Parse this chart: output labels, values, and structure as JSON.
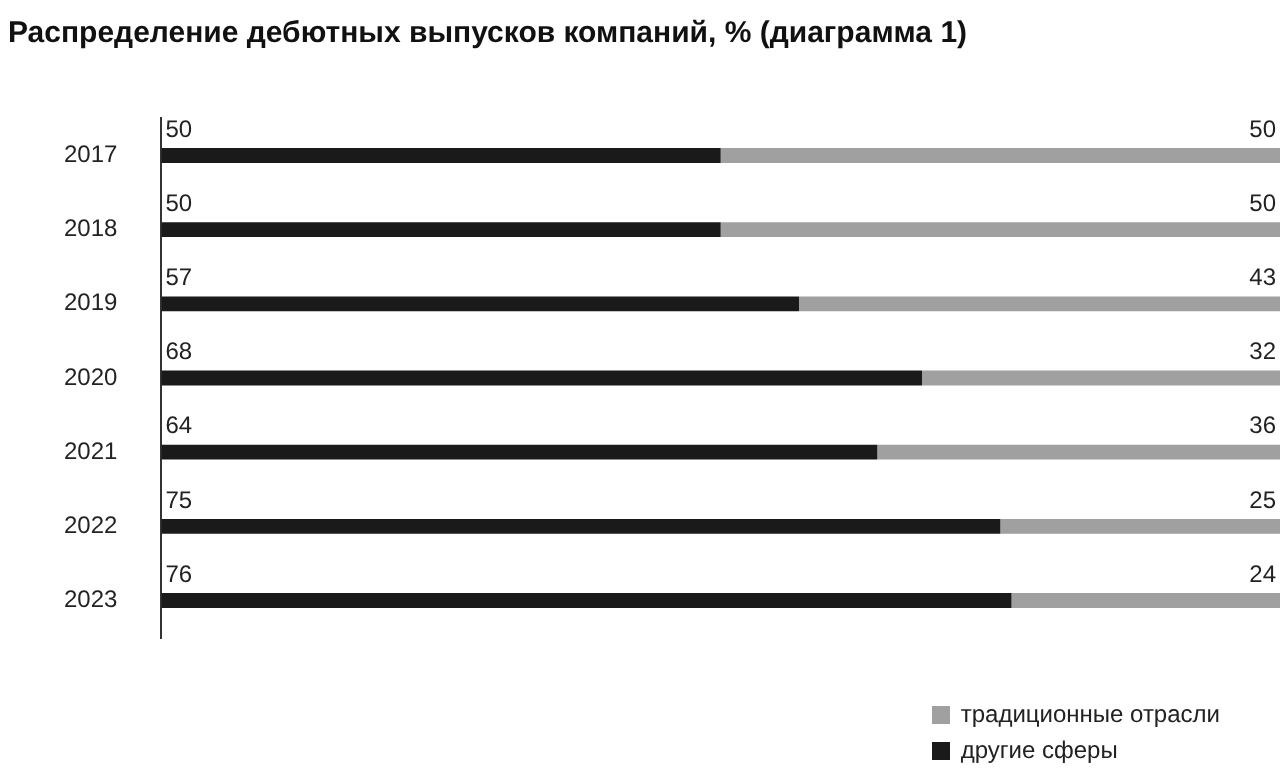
{
  "chart_data": {
    "type": "bar",
    "orientation": "horizontal",
    "stacked": true,
    "title": "Распределение дебютных выпусков компаний, % (диаграмма 1)",
    "categories": [
      "2017",
      "2018",
      "2019",
      "2020",
      "2021",
      "2022",
      "2023"
    ],
    "series": [
      {
        "name": "другие сферы",
        "color": "#1a1a1a",
        "values": [
          50,
          50,
          57,
          68,
          64,
          75,
          76
        ]
      },
      {
        "name": "традиционные отрасли",
        "color": "#a0a0a0",
        "values": [
          50,
          50,
          43,
          32,
          36,
          25,
          24
        ]
      }
    ],
    "data_labels": true,
    "legend": "bottom right"
  }
}
